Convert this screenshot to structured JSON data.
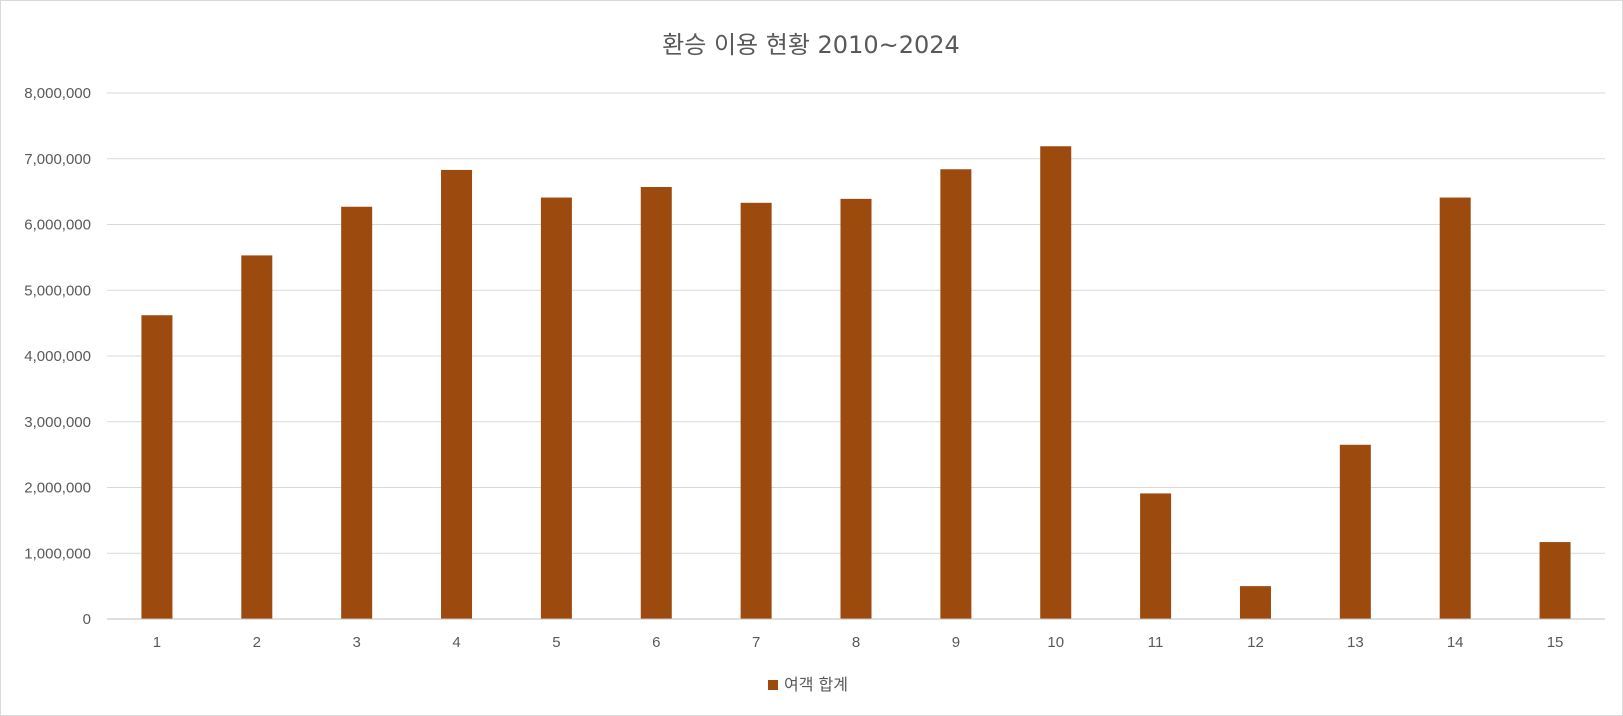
{
  "chart_data": {
    "type": "bar",
    "title": "환승 이용 현황 2010~2024",
    "xlabel": "",
    "ylabel": "",
    "categories": [
      "1",
      "2",
      "3",
      "4",
      "5",
      "6",
      "7",
      "8",
      "9",
      "10",
      "11",
      "12",
      "13",
      "14",
      "15"
    ],
    "series": [
      {
        "name": "여객 합계",
        "color": "#9C4A0E",
        "values": [
          4620000,
          5530000,
          6270000,
          6830000,
          6410000,
          6570000,
          6330000,
          6390000,
          6840000,
          7190000,
          1910000,
          500000,
          2650000,
          6410000,
          1170000
        ]
      }
    ],
    "ylim": [
      0,
      8000000
    ],
    "y_ticks": [
      "0",
      "1,000,000",
      "2,000,000",
      "3,000,000",
      "4,000,000",
      "5,000,000",
      "6,000,000",
      "7,000,000",
      "8,000,000"
    ],
    "grid": true,
    "legend": "bottom"
  }
}
